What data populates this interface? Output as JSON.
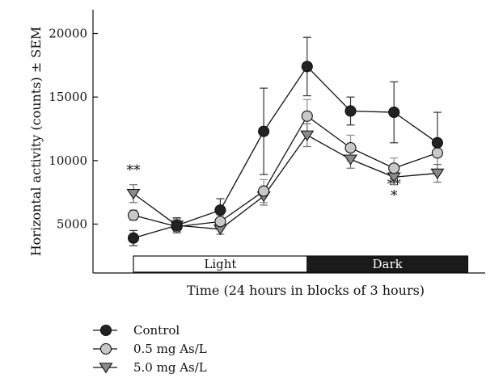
{
  "chart_data": {
    "type": "line",
    "title": "",
    "xlabel": "Time (24 hours in blocks of 3 hours)",
    "ylabel": "Horizontal activity (counts) ± SEM",
    "yticks": [
      5000,
      10000,
      15000,
      20000
    ],
    "ylim": [
      2500,
      22000
    ],
    "x": [
      1,
      2,
      3,
      4,
      5,
      6,
      7,
      8
    ],
    "xlim": [
      0.5,
      8.5
    ],
    "grid": false,
    "legend_position": "bottom-left",
    "phases": [
      {
        "label": "Light",
        "x_start": 1,
        "x_end": 5,
        "fill": "#ffffff",
        "text_color": "#111111"
      },
      {
        "label": "Dark",
        "x_start": 5,
        "x_end": 8.7,
        "fill": "#1a1a1a",
        "text_color": "#ffffff"
      }
    ],
    "series": [
      {
        "name": "Control",
        "marker": "circle",
        "fill": "#222222",
        "values": [
          3900,
          4900,
          6100,
          12300,
          17400,
          13900,
          13800,
          11400
        ],
        "errors": [
          600,
          600,
          900,
          3400,
          2300,
          1100,
          2400,
          2400
        ]
      },
      {
        "name": "0.5 mg As/L",
        "marker": "circle",
        "fill": "#c8c8c8",
        "values": [
          5700,
          4800,
          5200,
          7600,
          13500,
          11000,
          9400,
          10600
        ],
        "errors": [
          400,
          500,
          500,
          900,
          1300,
          1000,
          800,
          900
        ]
      },
      {
        "name": "5.0 mg As/L",
        "marker": "triangle-down",
        "fill": "#8a8a8a",
        "values": [
          7400,
          4900,
          4600,
          7200,
          12000,
          10100,
          8700,
          9000
        ],
        "errors": [
          700,
          500,
          400,
          700,
          900,
          700,
          600,
          700
        ]
      }
    ],
    "annotations": [
      {
        "text": "**",
        "x": 1,
        "y": 8900
      },
      {
        "text": "**",
        "x": 7,
        "y": 7800
      },
      {
        "text": "*",
        "x": 7,
        "y": 6900
      }
    ]
  }
}
